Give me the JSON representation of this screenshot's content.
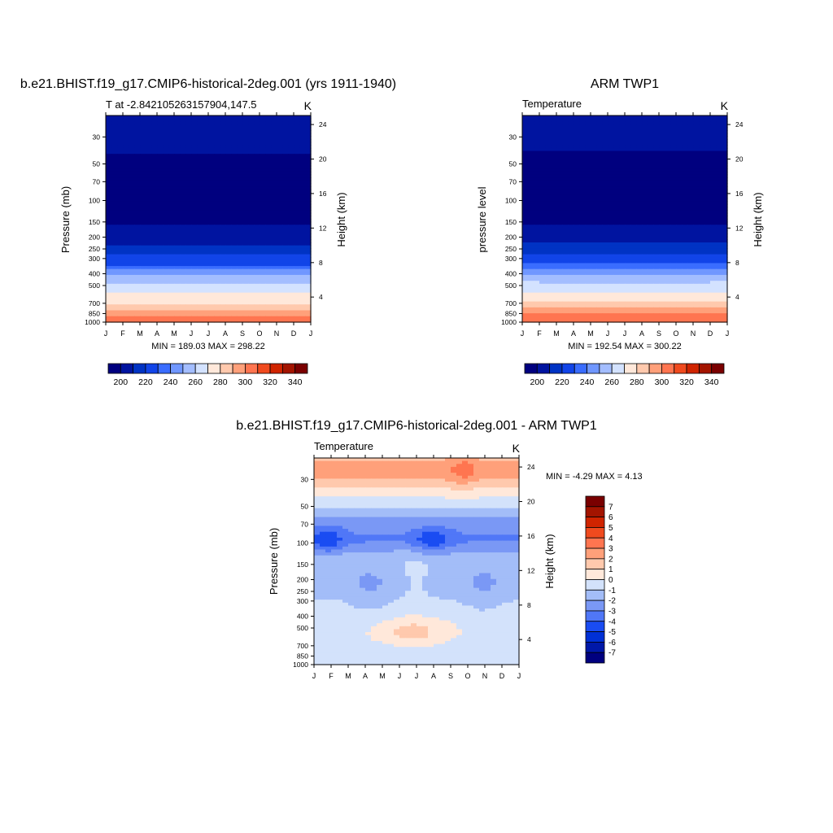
{
  "figure": {
    "colors": {
      "abs": [
        "#00007f",
        "#0014a0",
        "#0033c4",
        "#1144e8",
        "#3a6dff",
        "#7097ff",
        "#a3bdff",
        "#d3e2ff",
        "#ffe8da",
        "#ffc9ad",
        "#ffa07a",
        "#ff7550",
        "#f04a1e",
        "#d02400",
        "#a31400",
        "#7a0000"
      ],
      "diff": [
        "#00007f",
        "#0018a8",
        "#0030d6",
        "#1a4cf2",
        "#5077f7",
        "#7a98f5",
        "#a3bdf8",
        "#d3e2fb",
        "#ffe8da",
        "#ffc9ad",
        "#ffa07a",
        "#ff7550",
        "#f04a1e",
        "#d02400",
        "#a31400",
        "#7a0000"
      ]
    },
    "months": [
      "J",
      "F",
      "M",
      "A",
      "M",
      "J",
      "J",
      "A",
      "S",
      "O",
      "N",
      "D",
      "J"
    ]
  },
  "chart_data": [
    {
      "type": "heatmap",
      "title": "b.e21.BHIST.f19_g17.CMIP6-historical-2deg.001 (yrs 1911-1940)",
      "subtitle_left": "T at -2.842105263157904,147.5",
      "subtitle_right": "K",
      "ylabel": "Pressure (mb)",
      "ylabel_right": "Height (km)",
      "minmax": "MIN = 189.03 MAX = 298.22",
      "min": 189.03,
      "max": 298.22,
      "pressure_ticks": [
        "30",
        "50",
        "70",
        "100",
        "150",
        "200",
        "250",
        "300",
        "400",
        "500",
        "700",
        "850",
        "1000"
      ],
      "height_ticks": [
        "24",
        "20",
        "16",
        "12",
        "8",
        "4"
      ],
      "x_labels": [
        "J",
        "F",
        "M",
        "A",
        "M",
        "J",
        "J",
        "A",
        "S",
        "O",
        "N",
        "D",
        "J"
      ],
      "levels": [
        195,
        200,
        205,
        210,
        215,
        220,
        225,
        230,
        235,
        240,
        245,
        250,
        255,
        260,
        265,
        270,
        275,
        280,
        285,
        290
      ],
      "profile": [
        [
          20,
          205
        ],
        [
          30,
          214
        ],
        [
          40,
          206
        ],
        [
          55,
          198
        ],
        [
          70,
          191
        ],
        [
          100,
          190
        ],
        [
          140,
          200
        ],
        [
          160,
          205
        ],
        [
          200,
          212
        ],
        [
          250,
          224
        ],
        [
          300,
          233
        ],
        [
          400,
          250
        ],
        [
          500,
          263
        ],
        [
          600,
          273
        ],
        [
          700,
          280
        ],
        [
          850,
          289
        ],
        [
          1000,
          295
        ]
      ],
      "legend_labels": [
        "200",
        "220",
        "240",
        "260",
        "280",
        "300",
        "320",
        "340"
      ]
    },
    {
      "type": "heatmap",
      "title": "ARM TWP1",
      "subtitle_left": "Temperature",
      "subtitle_right": "K",
      "ylabel": "pressure level",
      "ylabel_right": "Height (km)",
      "minmax": "MIN = 192.54 MAX = 300.22",
      "min": 192.54,
      "max": 300.22,
      "pressure_ticks": [
        "30",
        "50",
        "70",
        "100",
        "150",
        "200",
        "250",
        "300",
        "400",
        "500",
        "700",
        "850",
        "1000"
      ],
      "height_ticks": [
        "24",
        "20",
        "16",
        "12",
        "8",
        "4"
      ],
      "x_labels": [
        "J",
        "F",
        "M",
        "A",
        "M",
        "J",
        "J",
        "A",
        "S",
        "O",
        "N",
        "D",
        "J"
      ],
      "levels": [
        195,
        200,
        205,
        210,
        215,
        220,
        225,
        230,
        235,
        240,
        245,
        250,
        255,
        260,
        265,
        270,
        275,
        280,
        285,
        290
      ],
      "profile": [
        [
          20,
          206
        ],
        [
          30,
          212
        ],
        [
          40,
          204
        ],
        [
          55,
          197
        ],
        [
          70,
          193
        ],
        [
          100,
          192
        ],
        [
          140,
          200
        ],
        [
          160,
          206
        ],
        [
          200,
          214
        ],
        [
          250,
          225
        ],
        [
          300,
          234
        ],
        [
          400,
          250
        ],
        [
          500,
          264
        ],
        [
          600,
          274
        ],
        [
          700,
          282
        ],
        [
          850,
          291
        ],
        [
          1000,
          298
        ]
      ],
      "legend_labels": [
        "200",
        "220",
        "240",
        "260",
        "280",
        "300",
        "320",
        "340"
      ]
    },
    {
      "type": "heatmap",
      "title": "b.e21.BHIST.f19_g17.CMIP6-historical-2deg.001 - ARM TWP1",
      "subtitle_left": "Temperature",
      "subtitle_right": "K",
      "ylabel": "Pressure (mb)",
      "ylabel_right": "Height (km)",
      "minmax": "MIN =  -4.29 MAX =   4.13",
      "min": -4.29,
      "max": 4.13,
      "pressure_ticks": [
        "30",
        "50",
        "70",
        "100",
        "150",
        "200",
        "250",
        "300",
        "400",
        "500",
        "700",
        "850",
        "1000"
      ],
      "height_ticks": [
        "24",
        "20",
        "16",
        "12",
        "8",
        "4"
      ],
      "x_labels": [
        "J",
        "F",
        "M",
        "A",
        "M",
        "J",
        "J",
        "A",
        "S",
        "O",
        "N",
        "D",
        "J"
      ],
      "levels": [
        -7,
        -6,
        -5,
        -4,
        -3,
        -2,
        -1,
        0,
        1,
        2,
        3,
        4,
        5,
        6,
        7
      ],
      "legend_labels": [
        "7",
        "6",
        "5",
        "4",
        "3",
        "2",
        "1",
        "0",
        "-1",
        "-2",
        "-3",
        "-4",
        "-5",
        "-6",
        "-7"
      ]
    }
  ]
}
